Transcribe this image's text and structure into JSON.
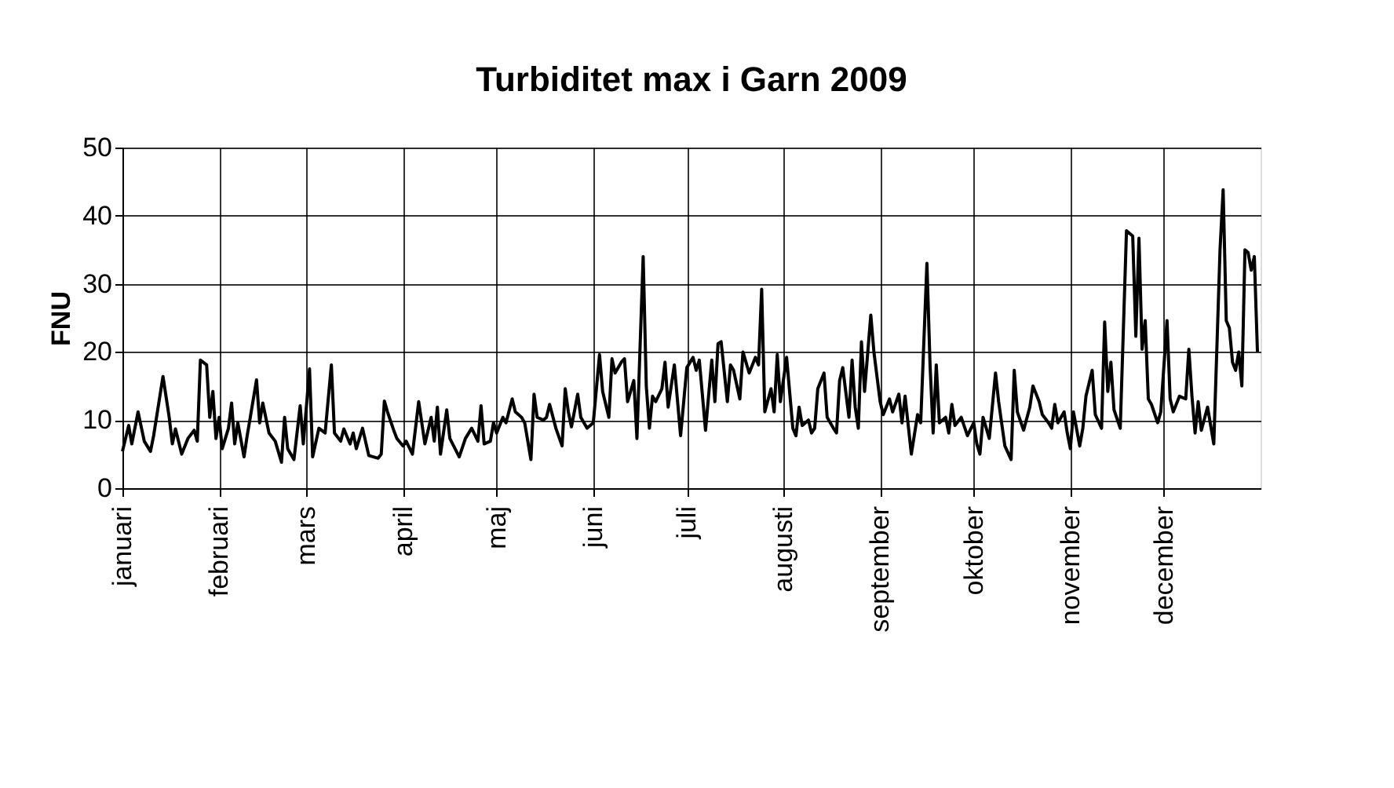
{
  "chart_data": {
    "type": "line",
    "title": "Turbiditet max i Garn 2009",
    "ylabel": "FNU",
    "color": "#000000",
    "line_style": "solid",
    "grid": true,
    "xlim": [
      "2009-01-01",
      "2010-01-01"
    ],
    "ylim": [
      0,
      50
    ],
    "yticks": [
      0,
      10,
      20,
      30,
      40,
      50
    ],
    "xticks": [
      {
        "value": "2009-01-01",
        "label": "januari"
      },
      {
        "value": "2009-02-01",
        "label": "februari"
      },
      {
        "value": "2009-03-01",
        "label": "mars"
      },
      {
        "value": "2009-04-01",
        "label": "april"
      },
      {
        "value": "2009-05-01",
        "label": "maj"
      },
      {
        "value": "2009-06-01",
        "label": "juni"
      },
      {
        "value": "2009-07-01",
        "label": "juli"
      },
      {
        "value": "2009-08-01",
        "label": "augusti"
      },
      {
        "value": "2009-09-01",
        "label": "september"
      },
      {
        "value": "2009-10-01",
        "label": "oktober"
      },
      {
        "value": "2009-11-01",
        "label": "november"
      },
      {
        "value": "2009-12-01",
        "label": "december"
      }
    ],
    "x": [
      "2009-01-01",
      "2009-01-03",
      "2009-01-04",
      "2009-01-06",
      "2009-01-08",
      "2009-01-10",
      "2009-01-11",
      "2009-01-14",
      "2009-01-16",
      "2009-01-17",
      "2009-01-18",
      "2009-01-20",
      "2009-01-22",
      "2009-01-24",
      "2009-01-25",
      "2009-01-26",
      "2009-01-28",
      "2009-01-29",
      "2009-01-30",
      "2009-01-31",
      "2009-02-01",
      "2009-02-02",
      "2009-02-04",
      "2009-02-05",
      "2009-02-06",
      "2009-02-07",
      "2009-02-09",
      "2009-02-10",
      "2009-02-11",
      "2009-02-13",
      "2009-02-14",
      "2009-02-15",
      "2009-02-17",
      "2009-02-19",
      "2009-02-21",
      "2009-02-22",
      "2009-02-23",
      "2009-02-25",
      "2009-02-27",
      "2009-02-28",
      "2009-03-02",
      "2009-03-03",
      "2009-03-05",
      "2009-03-07",
      "2009-03-09",
      "2009-03-10",
      "2009-03-12",
      "2009-03-13",
      "2009-03-15",
      "2009-03-16",
      "2009-03-17",
      "2009-03-19",
      "2009-03-21",
      "2009-03-24",
      "2009-03-25",
      "2009-03-26",
      "2009-03-27",
      "2009-03-29",
      "2009-03-30",
      "2009-04-01",
      "2009-04-02",
      "2009-04-04",
      "2009-04-06",
      "2009-04-08",
      "2009-04-10",
      "2009-04-11",
      "2009-04-12",
      "2009-04-13",
      "2009-04-15",
      "2009-04-16",
      "2009-04-19",
      "2009-04-21",
      "2009-04-23",
      "2009-04-25",
      "2009-04-26",
      "2009-04-27",
      "2009-04-29",
      "2009-04-30",
      "2009-05-01",
      "2009-05-03",
      "2009-05-04",
      "2009-05-06",
      "2009-05-07",
      "2009-05-09",
      "2009-05-10",
      "2009-05-12",
      "2009-05-13",
      "2009-05-14",
      "2009-05-16",
      "2009-05-17",
      "2009-05-18",
      "2009-05-20",
      "2009-05-22",
      "2009-05-23",
      "2009-05-24",
      "2009-05-25",
      "2009-05-27",
      "2009-05-28",
      "2009-05-30",
      "2009-06-01",
      "2009-06-03",
      "2009-06-04",
      "2009-06-06",
      "2009-06-07",
      "2009-06-08",
      "2009-06-10",
      "2009-06-11",
      "2009-06-12",
      "2009-06-14",
      "2009-06-15",
      "2009-06-17",
      "2009-06-18",
      "2009-06-19",
      "2009-06-20",
      "2009-06-21",
      "2009-06-23",
      "2009-06-24",
      "2009-06-25",
      "2009-06-27",
      "2009-06-29",
      "2009-07-01",
      "2009-07-03",
      "2009-07-04",
      "2009-07-05",
      "2009-07-07",
      "2009-07-09",
      "2009-07-10",
      "2009-07-11",
      "2009-07-12",
      "2009-07-14",
      "2009-07-15",
      "2009-07-16",
      "2009-07-18",
      "2009-07-19",
      "2009-07-21",
      "2009-07-23",
      "2009-07-24",
      "2009-07-25",
      "2009-07-26",
      "2009-07-28",
      "2009-07-29",
      "2009-07-30",
      "2009-07-31",
      "2009-08-02",
      "2009-08-04",
      "2009-08-05",
      "2009-08-06",
      "2009-08-07",
      "2009-08-09",
      "2009-08-10",
      "2009-08-11",
      "2009-08-12",
      "2009-08-14",
      "2009-08-15",
      "2009-08-17",
      "2009-08-18",
      "2009-08-19",
      "2009-08-20",
      "2009-08-22",
      "2009-08-23",
      "2009-08-24",
      "2009-08-25",
      "2009-08-26",
      "2009-08-27",
      "2009-08-29",
      "2009-08-30",
      "2009-09-01",
      "2009-09-02",
      "2009-09-04",
      "2009-09-05",
      "2009-09-07",
      "2009-09-08",
      "2009-09-09",
      "2009-09-11",
      "2009-09-13",
      "2009-09-14",
      "2009-09-16",
      "2009-09-17",
      "2009-09-18",
      "2009-09-19",
      "2009-09-20",
      "2009-09-22",
      "2009-09-23",
      "2009-09-24",
      "2009-09-25",
      "2009-09-27",
      "2009-09-29",
      "2009-10-01",
      "2009-10-02",
      "2009-10-03",
      "2009-10-04",
      "2009-10-06",
      "2009-10-08",
      "2009-10-09",
      "2009-10-11",
      "2009-10-13",
      "2009-10-14",
      "2009-10-15",
      "2009-10-17",
      "2009-10-19",
      "2009-10-20",
      "2009-10-22",
      "2009-10-23",
      "2009-10-25",
      "2009-10-26",
      "2009-10-27",
      "2009-10-28",
      "2009-10-30",
      "2009-10-31",
      "2009-11-01",
      "2009-11-02",
      "2009-11-04",
      "2009-11-05",
      "2009-11-06",
      "2009-11-08",
      "2009-11-09",
      "2009-11-11",
      "2009-11-12",
      "2009-11-13",
      "2009-11-14",
      "2009-11-15",
      "2009-11-17",
      "2009-11-19",
      "2009-11-21",
      "2009-11-22",
      "2009-11-23",
      "2009-11-24",
      "2009-11-25",
      "2009-11-26",
      "2009-11-27",
      "2009-11-29",
      "2009-11-30",
      "2009-12-02",
      "2009-12-03",
      "2009-12-04",
      "2009-12-06",
      "2009-12-08",
      "2009-12-09",
      "2009-12-10",
      "2009-12-11",
      "2009-12-12",
      "2009-12-13",
      "2009-12-15",
      "2009-12-17",
      "2009-12-19",
      "2009-12-20",
      "2009-12-21",
      "2009-12-22",
      "2009-12-23",
      "2009-12-24",
      "2009-12-25",
      "2009-12-26",
      "2009-12-27",
      "2009-12-28",
      "2009-12-29",
      "2009-12-30",
      "2009-12-31"
    ],
    "values": [
      5.4,
      9.2,
      6.5,
      11.2,
      6.9,
      5.4,
      7.7,
      16.4,
      10.4,
      6.5,
      8.7,
      5,
      7.3,
      8.5,
      6.9,
      18.8,
      18.1,
      10.4,
      14.2,
      7.3,
      10.4,
      5.8,
      8.8,
      12.5,
      6.5,
      9.6,
      4.6,
      7.7,
      10.4,
      15.9,
      9.6,
      12.5,
      8.1,
      6.9,
      3.8,
      10.4,
      5.8,
      4.2,
      12.1,
      6.5,
      17.5,
      4.6,
      8.8,
      8.1,
      18.1,
      8.1,
      6.9,
      8.7,
      6.5,
      8.1,
      5.8,
      8.8,
      4.8,
      4.4,
      5,
      12.8,
      11.2,
      8.5,
      7.3,
      6.2,
      6.9,
      5,
      12.7,
      6.5,
      10.4,
      6.9,
      11.9,
      5,
      11.5,
      7.3,
      4.6,
      7.3,
      8.8,
      6.9,
      12.1,
      6.5,
      6.9,
      9.6,
      8.1,
      10.4,
      9.6,
      13.1,
      11.2,
      10.4,
      9.6,
      4.2,
      13.8,
      10.4,
      10,
      10.4,
      12.3,
      8.8,
      6.2,
      14.6,
      11.2,
      9,
      13.8,
      10.4,
      8.8,
      9.6,
      19.6,
      14.2,
      10.4,
      19,
      16.9,
      18.5,
      19,
      12.7,
      15.8,
      7.3,
      34,
      15,
      8.8,
      13.5,
      12.7,
      14.6,
      18.5,
      11.9,
      18.1,
      7.7,
      17.7,
      19.2,
      17.3,
      18.8,
      8.5,
      18.8,
      12.7,
      21.2,
      21.5,
      12.7,
      18.1,
      17.3,
      13.1,
      20,
      16.9,
      19.2,
      18.1,
      29.2,
      11.2,
      14.6,
      11.2,
      19.6,
      12.7,
      19.2,
      8.8,
      7.7,
      11.9,
      9.2,
      10,
      8.1,
      8.8,
      14.6,
      16.9,
      10.4,
      8.8,
      8.1,
      15.8,
      17.7,
      10.4,
      18.8,
      11.9,
      8.8,
      21.5,
      14.2,
      25.4,
      20,
      12.7,
      10.8,
      13.1,
      11.2,
      13.8,
      9.6,
      13.5,
      5,
      10.8,
      9.6,
      33,
      18.1,
      8.1,
      18.1,
      9.6,
      10.4,
      8.1,
      12.3,
      9.2,
      10.4,
      7.7,
      9.6,
      6.5,
      5,
      10.4,
      7.3,
      16.9,
      12.7,
      6.2,
      4.2,
      17.3,
      11.2,
      8.5,
      11.9,
      15,
      12.7,
      10.8,
      9.6,
      8.8,
      12.3,
      9.6,
      11.2,
      8.1,
      5.8,
      11.2,
      6.2,
      8.8,
      13.5,
      17.3,
      10.8,
      8.8,
      24.4,
      14.2,
      18.5,
      11.5,
      8.8,
      37.8,
      37,
      22.3,
      36.7,
      20.4,
      24.6,
      13.1,
      12.3,
      9.6,
      11.2,
      24.6,
      13.1,
      11.2,
      13.5,
      13.1,
      20.4,
      13.5,
      8.1,
      12.7,
      8.5,
      11.9,
      6.5,
      35,
      43.8,
      24.6,
      23.5,
      18.5,
      17.3,
      20,
      15,
      35,
      34.6,
      32,
      34,
      20
    ]
  }
}
